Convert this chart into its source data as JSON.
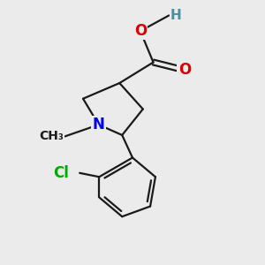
{
  "background_color": "#ebebeb",
  "atom_colors": {
    "C": "#1a1a1a",
    "N": "#0000ee",
    "O": "#dd0000",
    "Cl": "#00aa00",
    "H": "#4a8fa0"
  },
  "bond_color": "#1a1a1a",
  "bond_width": 1.6,
  "font_size_atom": 12,
  "font_size_h": 11
}
